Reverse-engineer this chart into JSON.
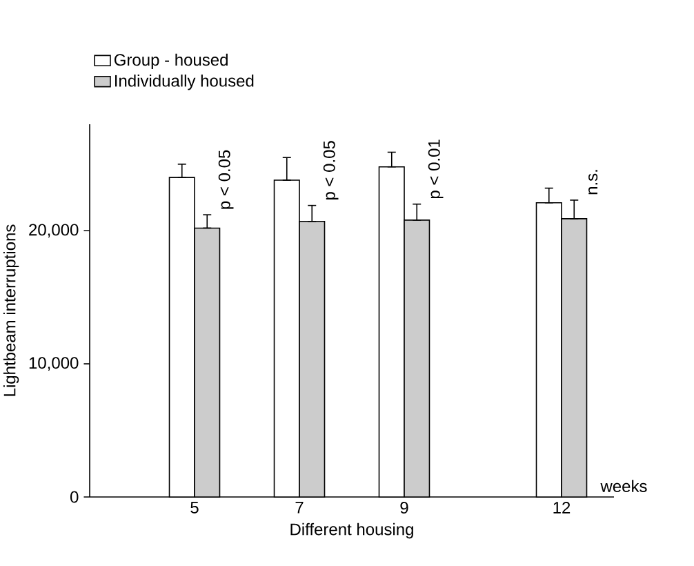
{
  "chart_data": {
    "type": "bar",
    "xlabel": "Different housing",
    "ylabel": "Lightbeam interruptions",
    "x": [
      5,
      7,
      9,
      12
    ],
    "xlim": [
      3,
      13
    ],
    "xticks": [
      5,
      7,
      9,
      12
    ],
    "ylim": [
      0,
      28000
    ],
    "yticks": [
      {
        "value": 0,
        "label": "0"
      },
      {
        "value": 10000,
        "label": "10,000"
      },
      {
        "value": 20000,
        "label": "20,000"
      }
    ],
    "series": [
      {
        "name": "Group - housed",
        "color": "#ffffff",
        "values": [
          24000,
          23800,
          24800,
          22100
        ],
        "errors": [
          [
            24000,
            25000
          ],
          [
            23800,
            25500
          ],
          [
            24800,
            25900
          ],
          [
            22100,
            23200
          ]
        ]
      },
      {
        "name": "Individually housed",
        "color": "#cccccc",
        "values": [
          20200,
          20700,
          20800,
          20900
        ],
        "errors": [
          [
            20200,
            21200
          ],
          [
            20700,
            21900
          ],
          [
            20800,
            22000
          ],
          [
            20900,
            22300
          ]
        ]
      }
    ],
    "legend": "top left",
    "grid": false,
    "annotations": [
      {
        "text": "p < 0.05",
        "x": 5,
        "y": 21200
      },
      {
        "text": "p < 0.05",
        "x": 7,
        "y": 21900
      },
      {
        "text": "p < 0.01",
        "x": 9,
        "y": 22000
      },
      {
        "text": "n.s.",
        "x": 12,
        "y": 22300
      },
      "weeks"
    ]
  }
}
